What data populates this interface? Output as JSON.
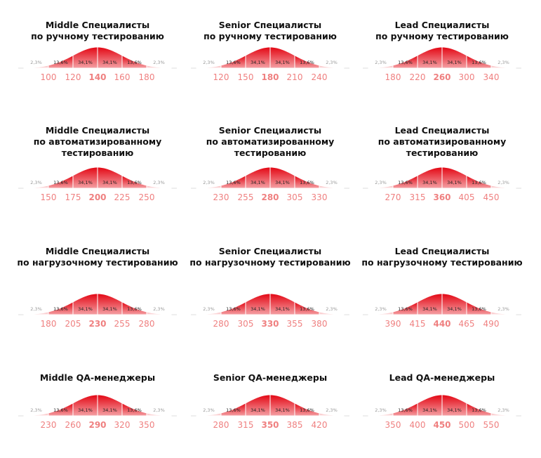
{
  "chart_data": [
    {
      "type": "bell",
      "title": [
        "Middle Специалисты",
        "по ручному тестированию"
      ],
      "values": [
        2.3,
        13.6,
        34.1,
        34.1,
        13.6,
        2.3
      ],
      "value_labels": [
        "2,3%",
        "13,6%",
        "34,1%",
        "34,1%",
        "13,6%",
        "2,3%"
      ],
      "xlim": [
        80,
        200
      ],
      "xticks": [
        100,
        120,
        140,
        160,
        180
      ],
      "color": "#e30613"
    },
    {
      "type": "bell",
      "title": [
        "Senior Специалисты",
        "по ручному тестированию"
      ],
      "values": [
        2.3,
        13.6,
        34.1,
        34.1,
        13.6,
        2.3
      ],
      "value_labels": [
        "2,3%",
        "13,6%",
        "34,1%",
        "34,1%",
        "13,6%",
        "2,3%"
      ],
      "xlim": [
        90,
        270
      ],
      "xticks": [
        120,
        150,
        180,
        210,
        240
      ],
      "color": "#e30613"
    },
    {
      "type": "bell",
      "title": [
        "Lead Специалисты",
        "по ручному тестированию"
      ],
      "values": [
        2.3,
        13.6,
        34.1,
        34.1,
        13.6,
        2.3
      ],
      "value_labels": [
        "2,3%",
        "13,6%",
        "34,1%",
        "34,1%",
        "13,6%",
        "2,3%"
      ],
      "xlim": [
        140,
        380
      ],
      "xticks": [
        180,
        220,
        260,
        300,
        340
      ],
      "color": "#e30613"
    },
    {
      "type": "bell",
      "title": [
        "Middle Специалисты",
        "по автоматизированному",
        "тестированию"
      ],
      "values": [
        2.3,
        13.6,
        34.1,
        34.1,
        13.6,
        2.3
      ],
      "value_labels": [
        "2,3%",
        "13,6%",
        "34,1%",
        "34,1%",
        "13,6%",
        "2,3%"
      ],
      "xlim": [
        125,
        275
      ],
      "xticks": [
        150,
        175,
        200,
        225,
        250
      ],
      "color": "#e30613"
    },
    {
      "type": "bell",
      "title": [
        "Senior Специалисты",
        "по автоматизированному",
        "тестированию"
      ],
      "values": [
        2.3,
        13.6,
        34.1,
        34.1,
        13.6,
        2.3
      ],
      "value_labels": [
        "2,3%",
        "13,6%",
        "34,1%",
        "34,1%",
        "13,6%",
        "2,3%"
      ],
      "xlim": [
        205,
        355
      ],
      "xticks": [
        230,
        255,
        280,
        305,
        330
      ],
      "color": "#e30613"
    },
    {
      "type": "bell",
      "title": [
        "Lead Специалисты",
        "по автоматизированному",
        "тестированию"
      ],
      "values": [
        2.3,
        13.6,
        34.1,
        34.1,
        13.6,
        2.3
      ],
      "value_labels": [
        "2,3%",
        "13,6%",
        "34,1%",
        "34,1%",
        "13,6%",
        "2,3%"
      ],
      "xlim": [
        225,
        495
      ],
      "xticks": [
        270,
        315,
        360,
        405,
        450
      ],
      "color": "#e30613"
    },
    {
      "type": "bell",
      "title": [
        "Middle Специалисты",
        "по нагрузочному тестированию"
      ],
      "values": [
        2.3,
        13.6,
        34.1,
        34.1,
        13.6,
        2.3
      ],
      "value_labels": [
        "2,3%",
        "13,6%",
        "34,1%",
        "34,1%",
        "13,6%",
        "2,3%"
      ],
      "xlim": [
        155,
        305
      ],
      "xticks": [
        180,
        205,
        230,
        255,
        280
      ],
      "color": "#e30613"
    },
    {
      "type": "bell",
      "title": [
        "Senior Специалисты",
        "по нагрузочному тестированию"
      ],
      "values": [
        2.3,
        13.6,
        34.1,
        34.1,
        13.6,
        2.3
      ],
      "value_labels": [
        "2,3%",
        "13,6%",
        "34,1%",
        "34,1%",
        "13,6%",
        "2,3%"
      ],
      "xlim": [
        255,
        405
      ],
      "xticks": [
        280,
        305,
        330,
        355,
        380
      ],
      "color": "#e30613"
    },
    {
      "type": "bell",
      "title": [
        "Lead Специалисты",
        "по нагрузочному тестированию"
      ],
      "values": [
        2.3,
        13.6,
        34.1,
        34.1,
        13.6,
        2.3
      ],
      "value_labels": [
        "2,3%",
        "13,6%",
        "34,1%",
        "34,1%",
        "13,6%",
        "2,3%"
      ],
      "xlim": [
        365,
        515
      ],
      "xticks": [
        390,
        415,
        440,
        465,
        490
      ],
      "color": "#e30613"
    },
    {
      "type": "bell",
      "title": [
        "Middle QA-менеджеры"
      ],
      "values": [
        2.3,
        13.6,
        34.1,
        34.1,
        13.6,
        2.3
      ],
      "value_labels": [
        "2,3%",
        "13,6%",
        "34,1%",
        "34,1%",
        "13,6%",
        "2,3%"
      ],
      "xlim": [
        200,
        380
      ],
      "xticks": [
        230,
        260,
        290,
        320,
        350
      ],
      "color": "#e30613"
    },
    {
      "type": "bell",
      "title": [
        "Senior QA-менеджеры"
      ],
      "values": [
        2.3,
        13.6,
        34.1,
        34.1,
        13.6,
        2.3
      ],
      "value_labels": [
        "2,3%",
        "13,6%",
        "34,1%",
        "34,1%",
        "13,6%",
        "2,3%"
      ],
      "xlim": [
        245,
        455
      ],
      "xticks": [
        280,
        315,
        350,
        385,
        420
      ],
      "color": "#e30613"
    },
    {
      "type": "bell",
      "title": [
        "Lead QA-менеджеры"
      ],
      "values": [
        2.3,
        13.6,
        34.1,
        34.1,
        13.6,
        2.3
      ],
      "value_labels": [
        "2,3%",
        "13,6%",
        "34,1%",
        "34,1%",
        "13,6%",
        "2,3%"
      ],
      "xlim": [
        300,
        600
      ],
      "xticks": [
        350,
        400,
        450,
        500,
        550
      ],
      "color": "#e30613"
    }
  ]
}
